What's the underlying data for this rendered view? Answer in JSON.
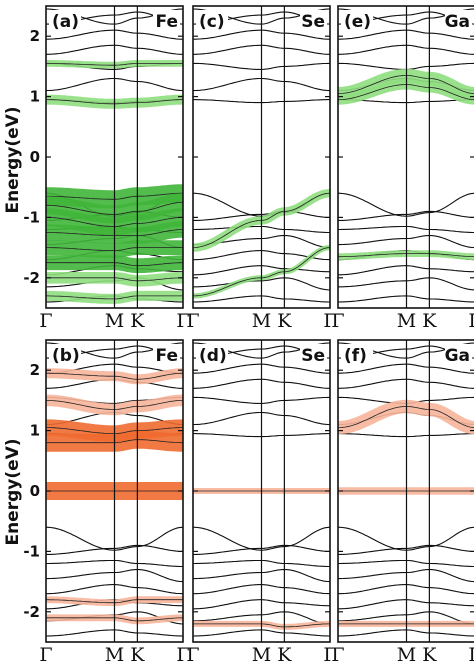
{
  "figure": {
    "row_colors": [
      "#3fb53a",
      "#f06a30"
    ],
    "row_light_colors": [
      "#8fde80",
      "#f7b49a"
    ]
  },
  "chart_data": [
    {
      "type": "line",
      "panel": "(a)",
      "element": "Fe",
      "projection": "green",
      "ylabel": "Energy(eV)",
      "y_ticks": [
        "2",
        "1",
        "0",
        "-1",
        "-2"
      ],
      "x_ticks": [
        "Γ",
        "M",
        "K",
        "Γ"
      ],
      "kpath_x": [
        0,
        0.5,
        0.667,
        1
      ],
      "ylim": [
        -2.5,
        2.5
      ],
      "weighted_bands": [
        {
          "band": "valence",
          "y_at_kpoints": [
            -0.65,
            -0.7,
            -0.65,
            -0.6
          ],
          "weight": 1.0
        },
        {
          "band": "valence",
          "y_at_kpoints": [
            -0.8,
            -0.95,
            -0.9,
            -0.75
          ],
          "weight": 1.0
        },
        {
          "band": "valence",
          "y_at_kpoints": [
            -1.0,
            -1.15,
            -1.1,
            -1.0
          ],
          "weight": 1.0
        },
        {
          "band": "valence",
          "y_at_kpoints": [
            -1.25,
            -1.3,
            -1.3,
            -1.2
          ],
          "weight": 0.9
        },
        {
          "band": "valence",
          "y_at_kpoints": [
            -1.5,
            -1.55,
            -1.5,
            -1.5
          ],
          "weight": 0.8
        },
        {
          "band": "valence",
          "y_at_kpoints": [
            -1.75,
            -1.75,
            -1.8,
            -1.75
          ],
          "weight": 0.8
        },
        {
          "band": "valence",
          "y_at_kpoints": [
            -2.0,
            -2.0,
            -2.05,
            -2.0
          ],
          "weight": 0.6
        },
        {
          "band": "valence",
          "y_at_kpoints": [
            -2.3,
            -2.35,
            -2.3,
            -2.3
          ],
          "weight": 0.5
        },
        {
          "band": "conduction",
          "y_at_kpoints": [
            0.95,
            0.88,
            0.9,
            0.95
          ],
          "weight": 0.5
        },
        {
          "band": "conduction",
          "y_at_kpoints": [
            1.55,
            1.52,
            1.55,
            1.55
          ],
          "weight": 0.3
        }
      ]
    },
    {
      "type": "line",
      "panel": "(c)",
      "element": "Se",
      "projection": "green",
      "x_ticks": [
        "Γ",
        "M",
        "K",
        "Γ"
      ],
      "ylim": [
        -2.5,
        2.5
      ],
      "weighted_bands": [
        {
          "band": "valence",
          "y_at_kpoints": [
            -1.5,
            -1.05,
            -0.9,
            -0.6
          ],
          "weight": 0.4
        },
        {
          "band": "valence",
          "y_at_kpoints": [
            -2.3,
            -2.0,
            -1.9,
            -1.5
          ],
          "weight": 0.2
        }
      ]
    },
    {
      "type": "line",
      "panel": "(e)",
      "element": "Ga",
      "projection": "green",
      "x_ticks": [
        "Γ",
        "M",
        "K",
        "Γ"
      ],
      "ylim": [
        -2.5,
        2.5
      ],
      "weighted_bands": [
        {
          "band": "conduction",
          "y_at_kpoints": [
            1.05,
            1.35,
            1.3,
            1.05
          ],
          "weight": 0.7
        },
        {
          "band": "conduction",
          "y_at_kpoints": [
            0.95,
            1.2,
            1.15,
            0.95
          ],
          "weight": 0.5
        },
        {
          "band": "valence",
          "y_at_kpoints": [
            -1.65,
            -1.6,
            -1.6,
            -1.65
          ],
          "weight": 0.3
        }
      ]
    },
    {
      "type": "line",
      "panel": "(b)",
      "element": "Fe",
      "projection": "orange",
      "ylabel": "Energy(eV)",
      "y_ticks": [
        "2",
        "1",
        "0",
        "-1",
        "-2"
      ],
      "x_ticks": [
        "Γ",
        "M",
        "K",
        "Γ"
      ],
      "ylim": [
        -2.5,
        2.5
      ],
      "weighted_bands": [
        {
          "band": "conduction",
          "y_at_kpoints": [
            0.0,
            0.0,
            0.0,
            0.0
          ],
          "weight": 1.0
        },
        {
          "band": "conduction",
          "y_at_kpoints": [
            0.8,
            0.8,
            0.85,
            0.8
          ],
          "weight": 1.0
        },
        {
          "band": "conduction",
          "y_at_kpoints": [
            1.05,
            0.95,
            1.0,
            1.05
          ],
          "weight": 0.9
        },
        {
          "band": "conduction",
          "y_at_kpoints": [
            1.5,
            1.35,
            1.4,
            1.5
          ],
          "weight": 0.6
        },
        {
          "band": "conduction",
          "y_at_kpoints": [
            1.95,
            1.9,
            1.85,
            1.95
          ],
          "weight": 0.5
        },
        {
          "band": "valence",
          "y_at_kpoints": [
            -1.8,
            -1.85,
            -1.8,
            -1.8
          ],
          "weight": 0.3
        },
        {
          "band": "valence",
          "y_at_kpoints": [
            -2.1,
            -2.1,
            -2.15,
            -2.1
          ],
          "weight": 0.3
        }
      ]
    },
    {
      "type": "line",
      "panel": "(d)",
      "element": "Se",
      "projection": "orange",
      "x_ticks": [
        "Γ",
        "M",
        "K",
        "Γ"
      ],
      "ylim": [
        -2.5,
        2.5
      ],
      "weighted_bands": [
        {
          "band": "conduction",
          "y_at_kpoints": [
            0.0,
            0.0,
            0.0,
            0.0
          ],
          "weight": 0.25
        },
        {
          "band": "valence",
          "y_at_kpoints": [
            -2.2,
            -2.2,
            -2.25,
            -2.2
          ],
          "weight": 0.25
        }
      ]
    },
    {
      "type": "line",
      "panel": "(f)",
      "element": "Ga",
      "projection": "orange",
      "x_ticks": [
        "Γ",
        "M",
        "K",
        "Γ"
      ],
      "ylim": [
        -2.5,
        2.5
      ],
      "weighted_bands": [
        {
          "band": "conduction",
          "y_at_kpoints": [
            1.05,
            1.4,
            1.35,
            1.05
          ],
          "weight": 0.7
        },
        {
          "band": "conduction",
          "y_at_kpoints": [
            0.0,
            0.0,
            0.0,
            0.0
          ],
          "weight": 0.35
        },
        {
          "band": "valence",
          "y_at_kpoints": [
            -2.2,
            -2.2,
            -2.2,
            -2.2
          ],
          "weight": 0.25
        }
      ]
    }
  ]
}
